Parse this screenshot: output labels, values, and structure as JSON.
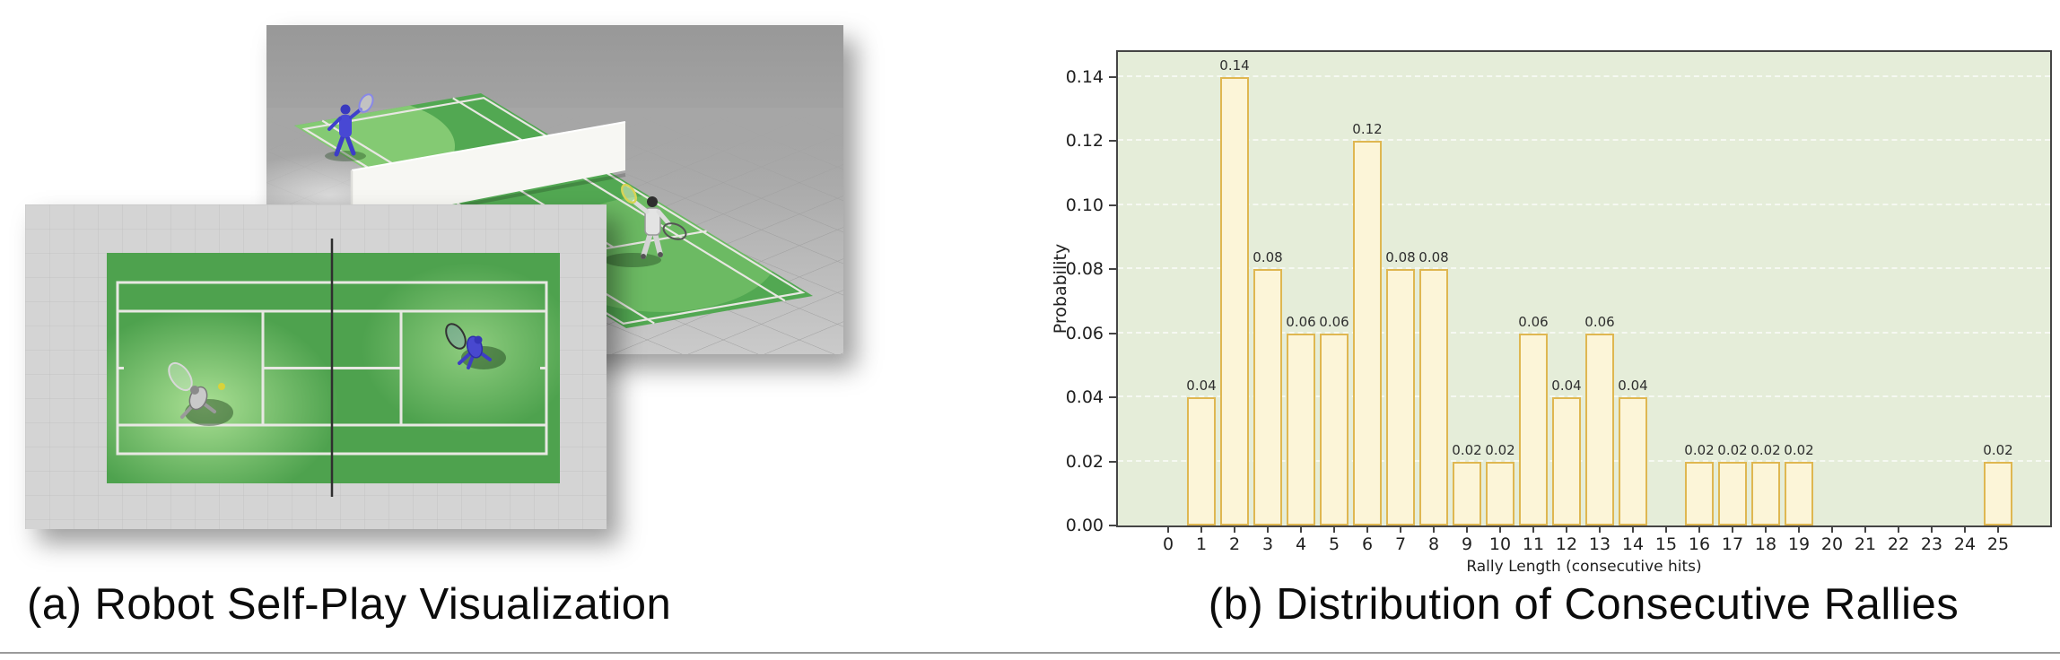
{
  "captions": {
    "a": "(a) Robot Self-Play Visualization",
    "b": "(b) Distribution of Consecutive Rallies"
  },
  "panel_a": {
    "views": [
      {
        "name": "perspective-simulation-view",
        "content": "3D simulated tennis court with a blue humanoid robot and a white humanoid robot separated by a white net on a gray checkered floor"
      },
      {
        "name": "top-down-simulation-view",
        "content": "Top-down simulated tennis court with a gray robot, a blue robot, a ball and a vertical net line on a gray grid floor"
      }
    ],
    "colors": {
      "court_green": "#4ea24e",
      "court_highlight": "#a9e18f",
      "floor_gray": "#d4d4d4",
      "net_white": "#f7f7f3",
      "blue_robot": "#4848d4",
      "white_robot": "#e3e3e3",
      "ball_yellow": "#d8d33b"
    }
  },
  "chart_data": {
    "type": "bar",
    "title": "",
    "xlabel": "Rally Length (consecutive hits)",
    "ylabel": "Probability",
    "x": [
      0,
      1,
      2,
      3,
      4,
      5,
      6,
      7,
      8,
      9,
      10,
      11,
      12,
      13,
      14,
      15,
      16,
      17,
      18,
      19,
      20,
      21,
      22,
      23,
      24,
      25
    ],
    "values": [
      0,
      0.04,
      0.14,
      0.08,
      0.06,
      0.06,
      0.12,
      0.08,
      0.08,
      0.02,
      0.02,
      0.06,
      0.04,
      0.06,
      0.04,
      0,
      0.02,
      0.02,
      0.02,
      0.02,
      0,
      0,
      0,
      0,
      0,
      0.02
    ],
    "bar_labels": [
      "",
      "0.04",
      "0.14",
      "0.08",
      "0.06",
      "0.06",
      "0.12",
      "0.08",
      "0.08",
      "0.02",
      "0.02",
      "0.06",
      "0.04",
      "0.06",
      "0.04",
      "",
      "0.02",
      "0.02",
      "0.02",
      "0.02",
      "",
      "",
      "",
      "",
      "",
      "0.02"
    ],
    "xtick_labels": [
      "0",
      "1",
      "2",
      "3",
      "4",
      "5",
      "6",
      "7",
      "8",
      "9",
      "10",
      "11",
      "12",
      "13",
      "14",
      "15",
      "16",
      "17",
      "18",
      "19",
      "20",
      "21",
      "22",
      "23",
      "24",
      "25"
    ],
    "ytick_labels": [
      "0.00",
      "0.02",
      "0.04",
      "0.06",
      "0.08",
      "0.10",
      "0.12",
      "0.14"
    ],
    "ytick_values": [
      0.0,
      0.02,
      0.04,
      0.06,
      0.08,
      0.1,
      0.12,
      0.14
    ],
    "ylim": [
      0,
      0.1477
    ],
    "grid": "horizontal dashed",
    "legend": null,
    "colors": {
      "plot_bg": "#e5edd9",
      "bar_fill": "#fcf5d8",
      "bar_edge": "#dfb751",
      "frame": "#454545",
      "grid": "rgba(255,255,255,0.65)"
    }
  }
}
